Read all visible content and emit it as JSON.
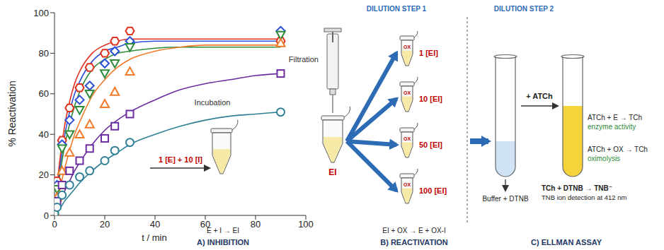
{
  "chart_data": {
    "type": "scatter",
    "ylabel": "% Reactivation",
    "xlabel": "t / min",
    "xlim": [
      0,
      100
    ],
    "xticks": [
      0,
      20,
      40,
      60,
      80,
      100
    ],
    "ylim": [
      0,
      100
    ],
    "yticks": [
      0,
      20,
      40,
      60,
      80,
      100
    ],
    "grid": false,
    "x": [
      0,
      1,
      3,
      6,
      10,
      14,
      20,
      24,
      30,
      90
    ],
    "fit_x": [
      0,
      2,
      4,
      6,
      8,
      10,
      15,
      20,
      25,
      30,
      40,
      50,
      60,
      70,
      80,
      90
    ],
    "series": [
      {
        "color": "#e0301e",
        "marker": "hexagon",
        "values": [
          5,
          17,
          37,
          53,
          63,
          73,
          80,
          86,
          91,
          86
        ],
        "fit": [
          0,
          26,
          44,
          56,
          65,
          71,
          80,
          84,
          86,
          87,
          87,
          87,
          87,
          87,
          87,
          87
        ]
      },
      {
        "color": "#2b4fd8",
        "marker": "diamond",
        "values": [
          4,
          15,
          35,
          47,
          57,
          64,
          75,
          81,
          86,
          91
        ],
        "fit": [
          0,
          22,
          39,
          51,
          60,
          66,
          76,
          81,
          83,
          85,
          86,
          86,
          86,
          86,
          86,
          86
        ]
      },
      {
        "color": "#2e8b3a",
        "marker": "triangle-down",
        "values": [
          3,
          13,
          33,
          40,
          52,
          60,
          70,
          75,
          83,
          89
        ],
        "fit": [
          0,
          19,
          34,
          45,
          54,
          61,
          72,
          77,
          80,
          81,
          82.5,
          83,
          83,
          83,
          83,
          83
        ]
      },
      {
        "color": "#f07b2b",
        "marker": "triangle-up",
        "values": [
          2,
          9,
          22,
          31,
          40,
          45,
          55,
          61,
          71,
          85
        ],
        "fit": [
          0,
          12,
          23,
          32,
          40,
          46,
          59,
          67,
          73,
          77,
          81,
          83,
          84,
          84,
          84,
          84
        ]
      },
      {
        "color": "#6a2c9e",
        "marker": "square",
        "values": [
          2,
          7,
          15,
          22,
          27,
          33,
          38,
          44,
          50,
          70
        ],
        "fit": [
          0,
          6,
          12,
          17,
          22,
          26,
          35,
          42,
          47,
          51,
          57,
          62,
          65,
          67,
          69,
          70
        ]
      },
      {
        "color": "#2f7f96",
        "marker": "circle",
        "values": [
          1,
          4,
          10,
          15,
          19,
          22,
          27,
          32,
          36,
          51
        ],
        "fit": [
          0,
          3,
          7,
          10,
          13,
          16,
          22,
          27,
          31,
          35,
          40,
          44,
          47,
          49,
          50,
          51
        ]
      }
    ]
  },
  "diagram": {
    "incubation": {
      "label": "Incubation",
      "mix": "1 [E] + 10 [I]"
    },
    "filtration": "Filtration",
    "complex": "EI",
    "dilution_steps": [
      "DILUTION STEP 1",
      "DILUTION STEP 2"
    ],
    "reactivation_tubes": [
      {
        "label": "1 [EI]",
        "tag": "OX"
      },
      {
        "label": "10 [EI]",
        "tag": "OX"
      },
      {
        "label": "50 [EI]",
        "tag": "OX"
      },
      {
        "label": "100 [EI]",
        "tag": "OX"
      }
    ],
    "buffer": "Buffer + DTNB",
    "substrate": "+ ATCh",
    "reactions": [
      {
        "equation": "ATCh + E → TCh",
        "note": "enzyme activity"
      },
      {
        "equation": "ATCh + OX → TCh",
        "note": "oximolysis"
      }
    ],
    "detection": {
      "equation": "TCh + DTNB → TNB⁻",
      "note": "TNB ion detection at 412 nm"
    },
    "steps": [
      {
        "equation": "E + I → EI",
        "title": "A) INHIBITION"
      },
      {
        "equation": "EI + OX → E + OX-I",
        "title": "B) REACTIVATION"
      },
      {
        "title": "C) ELLMAN ASSAY"
      }
    ]
  }
}
